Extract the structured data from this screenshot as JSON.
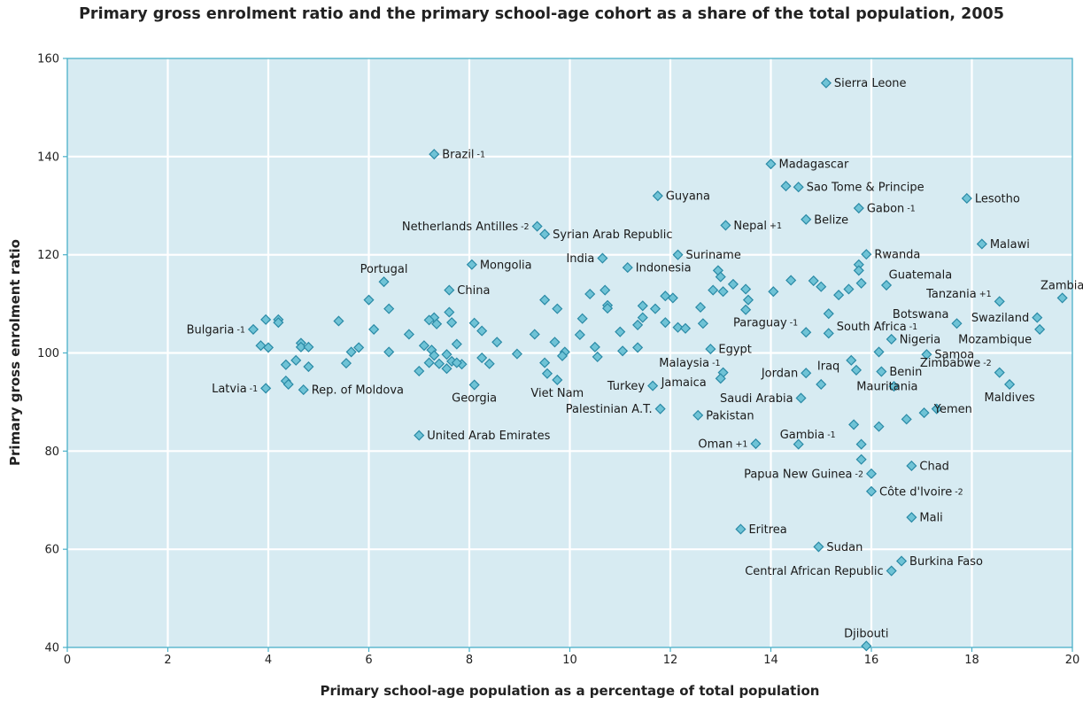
{
  "chart_data": {
    "type": "scatter",
    "title": "Primary gross enrolment ratio and the primary school-age cohort as a share of the total population, 2005",
    "xlabel": "Primary school-age population as a percentage of total population",
    "ylabel": "Primary gross enrolment ratio",
    "xlim": [
      0,
      20
    ],
    "ylim": [
      40,
      160
    ],
    "xticks": [
      0,
      2,
      4,
      6,
      8,
      10,
      12,
      14,
      16,
      18,
      20
    ],
    "yticks": [
      40,
      60,
      80,
      100,
      120,
      140,
      160
    ],
    "grid": true,
    "colors": {
      "plot_bg": "#d7ebf2",
      "grid": "#ffffff",
      "axis": "#4ab0c8",
      "marker_fill": "#6fc3d6",
      "marker_stroke": "#2a8aa6"
    },
    "points": [
      {
        "x": 15.1,
        "y": 155,
        "label": "Sierra Leone"
      },
      {
        "x": 7.3,
        "y": 140.5,
        "label": "Brazil",
        "sup": "-1"
      },
      {
        "x": 14.0,
        "y": 138.5,
        "label": "Madagascar"
      },
      {
        "x": 14.3,
        "y": 134,
        "label": ""
      },
      {
        "x": 14.55,
        "y": 133.8,
        "label": "Sao Tome & Principe"
      },
      {
        "x": 17.9,
        "y": 131.5,
        "label": "Lesotho"
      },
      {
        "x": 11.75,
        "y": 132,
        "label": "Guyana"
      },
      {
        "x": 15.75,
        "y": 129.5,
        "label": "Gabon",
        "sup": "-1"
      },
      {
        "x": 14.7,
        "y": 127.2,
        "label": "Belize"
      },
      {
        "x": 13.1,
        "y": 126,
        "label": "Nepal",
        "sup": "+1"
      },
      {
        "x": 9.35,
        "y": 125.8,
        "label": "Netherlands Antilles",
        "sup": "-2",
        "side": "left"
      },
      {
        "x": 9.5,
        "y": 124.2,
        "label": "Syrian Arab Republic"
      },
      {
        "x": 18.2,
        "y": 122.2,
        "label": "Malawi"
      },
      {
        "x": 15.9,
        "y": 120.1,
        "label": "Rwanda"
      },
      {
        "x": 12.15,
        "y": 120,
        "label": "Suriname"
      },
      {
        "x": 10.65,
        "y": 119.3,
        "label": "India",
        "side": "left"
      },
      {
        "x": 8.05,
        "y": 118,
        "label": "Mongolia"
      },
      {
        "x": 11.15,
        "y": 117.4,
        "label": "Indonesia"
      },
      {
        "x": 15.75,
        "y": 118,
        "label": ""
      },
      {
        "x": 15.75,
        "y": 116.8,
        "label": ""
      },
      {
        "x": 12.95,
        "y": 116.8,
        "label": ""
      },
      {
        "x": 13.0,
        "y": 115.5,
        "label": ""
      },
      {
        "x": 14.4,
        "y": 114.8,
        "label": ""
      },
      {
        "x": 14.85,
        "y": 114.7,
        "label": ""
      },
      {
        "x": 15.0,
        "y": 113.5,
        "label": ""
      },
      {
        "x": 6.3,
        "y": 114.5,
        "label": "Portugal",
        "labelPos": "above"
      },
      {
        "x": 15.8,
        "y": 114.2,
        "label": "Guatemala",
        "labelOffset": [
          22,
          -10
        ]
      },
      {
        "x": 13.25,
        "y": 114,
        "label": ""
      },
      {
        "x": 16.3,
        "y": 113.8,
        "label": ""
      },
      {
        "x": 13.5,
        "y": 113,
        "label": ""
      },
      {
        "x": 7.6,
        "y": 112.8,
        "label": "China"
      },
      {
        "x": 10.7,
        "y": 112.8,
        "label": ""
      },
      {
        "x": 10.4,
        "y": 112,
        "label": ""
      },
      {
        "x": 12.85,
        "y": 112.8,
        "label": ""
      },
      {
        "x": 13.05,
        "y": 112.5,
        "label": ""
      },
      {
        "x": 14.05,
        "y": 112.5,
        "label": ""
      },
      {
        "x": 15.55,
        "y": 113,
        "label": ""
      },
      {
        "x": 15.35,
        "y": 111.8,
        "label": ""
      },
      {
        "x": 11.9,
        "y": 111.6,
        "label": ""
      },
      {
        "x": 12.05,
        "y": 111.2,
        "label": ""
      },
      {
        "x": 13.55,
        "y": 110.8,
        "label": ""
      },
      {
        "x": 6.0,
        "y": 110.8,
        "label": ""
      },
      {
        "x": 9.5,
        "y": 110.8,
        "label": ""
      },
      {
        "x": 18.55,
        "y": 110.5,
        "label": "Tanzania",
        "sup": "+1",
        "side": "left",
        "labelOffset": [
          0,
          -9
        ]
      },
      {
        "x": 19.8,
        "y": 111.2,
        "label": "Zambia",
        "labelPos": "above"
      },
      {
        "x": 11.45,
        "y": 109.6,
        "label": ""
      },
      {
        "x": 10.75,
        "y": 109.7,
        "label": ""
      },
      {
        "x": 11.7,
        "y": 109,
        "label": ""
      },
      {
        "x": 12.6,
        "y": 109.3,
        "label": ""
      },
      {
        "x": 9.75,
        "y": 109,
        "label": ""
      },
      {
        "x": 10.75,
        "y": 109.1,
        "label": ""
      },
      {
        "x": 13.5,
        "y": 108.8,
        "label": ""
      },
      {
        "x": 6.4,
        "y": 109,
        "label": ""
      },
      {
        "x": 7.6,
        "y": 108.3,
        "label": ""
      },
      {
        "x": 15.15,
        "y": 108,
        "label": ""
      },
      {
        "x": 11.45,
        "y": 107.2,
        "label": ""
      },
      {
        "x": 19.3,
        "y": 107.2,
        "label": "Swaziland",
        "side": "left"
      },
      {
        "x": 7.3,
        "y": 107.2,
        "label": ""
      },
      {
        "x": 7.2,
        "y": 106.7,
        "label": ""
      },
      {
        "x": 10.25,
        "y": 107,
        "label": ""
      },
      {
        "x": 3.95,
        "y": 106.8,
        "label": ""
      },
      {
        "x": 4.2,
        "y": 106.8,
        "label": ""
      },
      {
        "x": 4.2,
        "y": 106.2,
        "label": ""
      },
      {
        "x": 5.4,
        "y": 106.5,
        "label": ""
      },
      {
        "x": 8.1,
        "y": 106.1,
        "label": ""
      },
      {
        "x": 7.65,
        "y": 106.2,
        "label": ""
      },
      {
        "x": 11.35,
        "y": 105.7,
        "label": ""
      },
      {
        "x": 11.9,
        "y": 106.2,
        "label": ""
      },
      {
        "x": 12.65,
        "y": 106,
        "label": ""
      },
      {
        "x": 17.7,
        "y": 106,
        "label": "Botswana",
        "side": "left",
        "labelOffset": [
          0,
          -11
        ]
      },
      {
        "x": 7.35,
        "y": 105.9,
        "label": ""
      },
      {
        "x": 14.7,
        "y": 104.2,
        "label": "Paraguay",
        "sup": "-1",
        "side": "left",
        "labelOffset": [
          0,
          -11
        ]
      },
      {
        "x": 15.15,
        "y": 104,
        "label": "South Africa",
        "sup": "-1",
        "labelOffset": [
          0,
          -8
        ]
      },
      {
        "x": 12.15,
        "y": 105.2,
        "label": ""
      },
      {
        "x": 12.3,
        "y": 105,
        "label": ""
      },
      {
        "x": 8.25,
        "y": 104.5,
        "label": ""
      },
      {
        "x": 3.7,
        "y": 104.8,
        "label": "Bulgaria",
        "sup": "-1",
        "side": "left"
      },
      {
        "x": 6.1,
        "y": 104.8,
        "label": ""
      },
      {
        "x": 19.35,
        "y": 104.8,
        "label": "Mozambique",
        "side": "left",
        "labelOffset": [
          0,
          11
        ]
      },
      {
        "x": 11.0,
        "y": 104.3,
        "label": ""
      },
      {
        "x": 10.2,
        "y": 103.7,
        "label": ""
      },
      {
        "x": 9.3,
        "y": 103.8,
        "label": ""
      },
      {
        "x": 6.8,
        "y": 103.8,
        "label": ""
      },
      {
        "x": 16.4,
        "y": 102.8,
        "label": "Nigeria"
      },
      {
        "x": 9.7,
        "y": 102.2,
        "label": ""
      },
      {
        "x": 4.65,
        "y": 102,
        "label": ""
      },
      {
        "x": 8.55,
        "y": 102.2,
        "label": ""
      },
      {
        "x": 7.75,
        "y": 101.8,
        "label": ""
      },
      {
        "x": 3.85,
        "y": 101.5,
        "label": ""
      },
      {
        "x": 4.65,
        "y": 101.2,
        "label": ""
      },
      {
        "x": 7.1,
        "y": 101.5,
        "label": ""
      },
      {
        "x": 4.8,
        "y": 101.2,
        "label": ""
      },
      {
        "x": 5.8,
        "y": 101.1,
        "label": ""
      },
      {
        "x": 10.5,
        "y": 101.2,
        "label": ""
      },
      {
        "x": 11.35,
        "y": 101.1,
        "label": ""
      },
      {
        "x": 7.25,
        "y": 100.6,
        "label": ""
      },
      {
        "x": 4.0,
        "y": 101.1,
        "label": ""
      },
      {
        "x": 12.8,
        "y": 100.8,
        "label": "Egypt"
      },
      {
        "x": 5.65,
        "y": 100.2,
        "label": ""
      },
      {
        "x": 6.4,
        "y": 100.2,
        "label": ""
      },
      {
        "x": 9.9,
        "y": 100.2,
        "label": ""
      },
      {
        "x": 11.05,
        "y": 100.4,
        "label": ""
      },
      {
        "x": 8.95,
        "y": 99.8,
        "label": ""
      },
      {
        "x": 16.15,
        "y": 100.2,
        "label": ""
      },
      {
        "x": 17.1,
        "y": 99.7,
        "label": "Samoa"
      },
      {
        "x": 7.3,
        "y": 99.5,
        "label": ""
      },
      {
        "x": 7.55,
        "y": 99.7,
        "label": ""
      },
      {
        "x": 9.85,
        "y": 99.4,
        "label": ""
      },
      {
        "x": 10.55,
        "y": 99.2,
        "label": ""
      },
      {
        "x": 8.25,
        "y": 99,
        "label": ""
      },
      {
        "x": 15.6,
        "y": 98.5,
        "label": "Iraq",
        "side": "left",
        "labelOffset": [
          -4,
          6
        ]
      },
      {
        "x": 4.55,
        "y": 98.5,
        "label": ""
      },
      {
        "x": 7.65,
        "y": 98.3,
        "label": ""
      },
      {
        "x": 7.2,
        "y": 98,
        "label": ""
      },
      {
        "x": 7.4,
        "y": 97.8,
        "label": ""
      },
      {
        "x": 7.85,
        "y": 97.7,
        "label": ""
      },
      {
        "x": 8.4,
        "y": 97.8,
        "label": ""
      },
      {
        "x": 9.5,
        "y": 98,
        "label": ""
      },
      {
        "x": 4.35,
        "y": 97.6,
        "label": ""
      },
      {
        "x": 4.8,
        "y": 97.2,
        "label": ""
      },
      {
        "x": 5.55,
        "y": 97.9,
        "label": ""
      },
      {
        "x": 7.75,
        "y": 98,
        "label": ""
      },
      {
        "x": 7.55,
        "y": 96.8,
        "label": ""
      },
      {
        "x": 13.05,
        "y": 96,
        "label": "Malaysia",
        "sup": "-1",
        "side": "left",
        "labelOffset": [
          6,
          -11
        ]
      },
      {
        "x": 7.0,
        "y": 96.3,
        "label": ""
      },
      {
        "x": 9.55,
        "y": 95.8,
        "label": ""
      },
      {
        "x": 15.7,
        "y": 96.5,
        "label": ""
      },
      {
        "x": 16.2,
        "y": 96.2,
        "label": "Benin"
      },
      {
        "x": 14.7,
        "y": 95.9,
        "label": "Jordan",
        "side": "left"
      },
      {
        "x": 18.55,
        "y": 96,
        "label": "Zimbabwe",
        "sup": "-2",
        "side": "left",
        "labelOffset": [
          0,
          -11
        ]
      },
      {
        "x": 13.0,
        "y": 94.8,
        "label": "Jamaica",
        "side": "left",
        "labelOffset": [
          -7,
          4
        ]
      },
      {
        "x": 9.75,
        "y": 94.5,
        "label": "Viet Nam",
        "labelPos": "below"
      },
      {
        "x": 4.35,
        "y": 94.3,
        "label": ""
      },
      {
        "x": 4.4,
        "y": 93.6,
        "label": ""
      },
      {
        "x": 8.1,
        "y": 93.5,
        "label": "Georgia",
        "labelPos": "below"
      },
      {
        "x": 15.0,
        "y": 93.6,
        "label": ""
      },
      {
        "x": 16.45,
        "y": 93.2,
        "label": "Mauritania",
        "side": "left",
        "labelOffset": [
          36,
          0
        ]
      },
      {
        "x": 18.75,
        "y": 93.6,
        "label": "Maldives",
        "labelPos": "below"
      },
      {
        "x": 11.65,
        "y": 93.3,
        "label": "Turkey",
        "side": "left"
      },
      {
        "x": 3.95,
        "y": 92.8,
        "label": "Latvia",
        "sup": "-1",
        "side": "left"
      },
      {
        "x": 4.7,
        "y": 92.5,
        "label": "Rep. of Moldova"
      },
      {
        "x": 14.6,
        "y": 90.8,
        "label": "Saudi Arabia",
        "side": "left"
      },
      {
        "x": 11.8,
        "y": 88.6,
        "label": "Palestinian A.T.",
        "side": "left"
      },
      {
        "x": 17.3,
        "y": 88.6,
        "label": "Yemen",
        "labelOffset": [
          -12,
          0
        ]
      },
      {
        "x": 17.05,
        "y": 87.8,
        "label": ""
      },
      {
        "x": 12.55,
        "y": 87.3,
        "label": "Pakistan"
      },
      {
        "x": 16.7,
        "y": 86.5,
        "label": ""
      },
      {
        "x": 15.65,
        "y": 85.4,
        "label": ""
      },
      {
        "x": 16.15,
        "y": 85,
        "label": ""
      },
      {
        "x": 7.0,
        "y": 83.2,
        "label": "United Arab Emirates"
      },
      {
        "x": 13.7,
        "y": 81.5,
        "label": "Oman",
        "sup": "+1",
        "side": "left"
      },
      {
        "x": 14.55,
        "y": 81.4,
        "label": "Gambia",
        "sup": "-1",
        "labelOffset": [
          -30,
          -11
        ]
      },
      {
        "x": 15.8,
        "y": 81.4,
        "label": ""
      },
      {
        "x": 15.8,
        "y": 78.3,
        "label": ""
      },
      {
        "x": 16.8,
        "y": 77,
        "label": "Chad"
      },
      {
        "x": 16.0,
        "y": 75.4,
        "label": "Papua New Guinea",
        "sup": "-2",
        "side": "left"
      },
      {
        "x": 16.0,
        "y": 71.8,
        "label": "Côte d'Ivoire",
        "sup": "-2"
      },
      {
        "x": 16.8,
        "y": 66.5,
        "label": "Mali"
      },
      {
        "x": 13.4,
        "y": 64.1,
        "label": "Eritrea"
      },
      {
        "x": 14.95,
        "y": 60.5,
        "label": "Sudan"
      },
      {
        "x": 16.6,
        "y": 57.6,
        "label": "Burkina Faso"
      },
      {
        "x": 16.4,
        "y": 55.6,
        "label": "Central African Republic",
        "side": "left"
      },
      {
        "x": 15.9,
        "y": 40.3,
        "label": "Djibouti",
        "labelPos": "above"
      }
    ]
  }
}
